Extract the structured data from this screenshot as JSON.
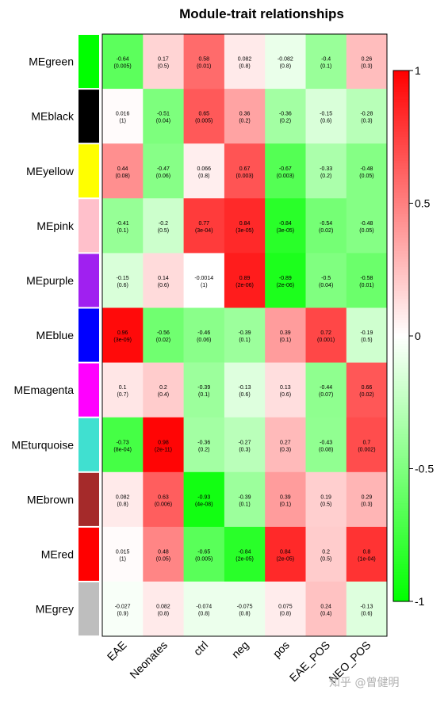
{
  "chart_data": {
    "type": "heatmap",
    "title": "Module-trait relationships",
    "rows": [
      "MEgreen",
      "MEblack",
      "MEyellow",
      "MEpink",
      "MEpurple",
      "MEblue",
      "MEmagenta",
      "MEturquoise",
      "MEbrown",
      "MEred",
      "MEgrey"
    ],
    "row_colors": [
      "#00ff00",
      "#000000",
      "#ffff00",
      "#ffc0cb",
      "#a020f0",
      "#0000ff",
      "#ff00ff",
      "#40e0d0",
      "#a52a2a",
      "#ff0000",
      "#bebebe"
    ],
    "columns": [
      "EAE",
      "Neonates",
      "ctrl",
      "neg",
      "pos",
      "EAE_POS",
      "NEO_POS"
    ],
    "values": [
      [
        -0.64,
        0.17,
        0.58,
        0.082,
        -0.082,
        -0.4,
        0.26
      ],
      [
        0.016,
        -0.51,
        0.65,
        0.36,
        -0.36,
        -0.15,
        -0.28
      ],
      [
        0.44,
        -0.47,
        0.066,
        0.67,
        -0.67,
        -0.33,
        -0.48
      ],
      [
        -0.41,
        -0.2,
        0.77,
        0.84,
        -0.84,
        -0.54,
        -0.48
      ],
      [
        -0.15,
        0.14,
        -0.0014,
        0.89,
        -0.89,
        -0.5,
        -0.58
      ],
      [
        0.96,
        -0.56,
        -0.46,
        -0.39,
        0.39,
        0.72,
        -0.19
      ],
      [
        0.1,
        0.2,
        -0.39,
        -0.13,
        0.13,
        -0.44,
        0.66
      ],
      [
        -0.73,
        0.98,
        -0.36,
        -0.27,
        0.27,
        -0.43,
        0.7
      ],
      [
        0.082,
        0.63,
        -0.93,
        -0.39,
        0.39,
        0.19,
        0.29
      ],
      [
        0.015,
        0.48,
        -0.65,
        -0.84,
        0.84,
        0.2,
        0.8
      ],
      [
        -0.027,
        0.082,
        -0.074,
        -0.075,
        0.075,
        0.24,
        -0.13
      ]
    ],
    "value_labels": [
      [
        "-0.64",
        "0.17",
        "0.58",
        "0.082",
        "-0.082",
        "-0.4",
        "0.26"
      ],
      [
        "0.016",
        "-0.51",
        "0.65",
        "0.36",
        "-0.36",
        "-0.15",
        "-0.28"
      ],
      [
        "0.44",
        "-0.47",
        "0.066",
        "0.67",
        "-0.67",
        "-0.33",
        "-0.48"
      ],
      [
        "-0.41",
        "-0.2",
        "0.77",
        "0.84",
        "-0.84",
        "-0.54",
        "-0.48"
      ],
      [
        "-0.15",
        "0.14",
        "-0.0014",
        "0.89",
        "-0.89",
        "-0.5",
        "-0.58"
      ],
      [
        "0.96",
        "-0.56",
        "-0.46",
        "-0.39",
        "0.39",
        "0.72",
        "-0.19"
      ],
      [
        "0.1",
        "0.2",
        "-0.39",
        "-0.13",
        "0.13",
        "-0.44",
        "0.66"
      ],
      [
        "-0.73",
        "0.98",
        "-0.36",
        "-0.27",
        "0.27",
        "-0.43",
        "0.7"
      ],
      [
        "0.082",
        "0.63",
        "-0.93",
        "-0.39",
        "0.39",
        "0.19",
        "0.29"
      ],
      [
        "0.015",
        "0.48",
        "-0.65",
        "-0.84",
        "0.84",
        "0.2",
        "0.8"
      ],
      [
        "-0.027",
        "0.082",
        "-0.074",
        "-0.075",
        "0.075",
        "0.24",
        "-0.13"
      ]
    ],
    "pvalues": [
      [
        "(0.005)",
        "(0.5)",
        "(0.01)",
        "(0.8)",
        "(0.8)",
        "(0.1)",
        "(0.3)"
      ],
      [
        "(1)",
        "(0.04)",
        "(0.005)",
        "(0.2)",
        "(0.2)",
        "(0.6)",
        "(0.3)"
      ],
      [
        "(0.08)",
        "(0.06)",
        "(0.8)",
        "(0.003)",
        "(0.003)",
        "(0.2)",
        "(0.05)"
      ],
      [
        "(0.1)",
        "(0.5)",
        "(3e-04)",
        "(3e-05)",
        "(3e-05)",
        "(0.02)",
        "(0.05)"
      ],
      [
        "(0.6)",
        "(0.6)",
        "(1)",
        "(2e-06)",
        "(2e-06)",
        "(0.04)",
        "(0.01)"
      ],
      [
        "(3e-09)",
        "(0.02)",
        "(0.06)",
        "(0.1)",
        "(0.1)",
        "(0.001)",
        "(0.5)"
      ],
      [
        "(0.7)",
        "(0.4)",
        "(0.1)",
        "(0.6)",
        "(0.6)",
        "(0.07)",
        "(0.02)"
      ],
      [
        "(8e-04)",
        "(2e-11)",
        "(0.2)",
        "(0.3)",
        "(0.3)",
        "(0.08)",
        "(0.002)"
      ],
      [
        "(0.8)",
        "(0.006)",
        "(4e-08)",
        "(0.1)",
        "(0.1)",
        "(0.5)",
        "(0.3)"
      ],
      [
        "(1)",
        "(0.05)",
        "(0.005)",
        "(2e-05)",
        "(2e-05)",
        "(0.5)",
        "(1e-04)"
      ],
      [
        "(0.9)",
        "(0.8)",
        "(0.8)",
        "(0.8)",
        "(0.8)",
        "(0.4)",
        "(0.6)"
      ]
    ],
    "color_scale": {
      "low": "#00ff00",
      "mid": "#ffffff",
      "high": "#ff0000",
      "range": [
        -1,
        1
      ]
    },
    "colorbar_ticks": [
      1,
      0.5,
      0,
      -0.5,
      -1
    ],
    "colorbar_tick_labels": [
      "1",
      "0.5",
      "0",
      "-0.5",
      "-1"
    ]
  },
  "watermark": "知乎 @曾健明"
}
